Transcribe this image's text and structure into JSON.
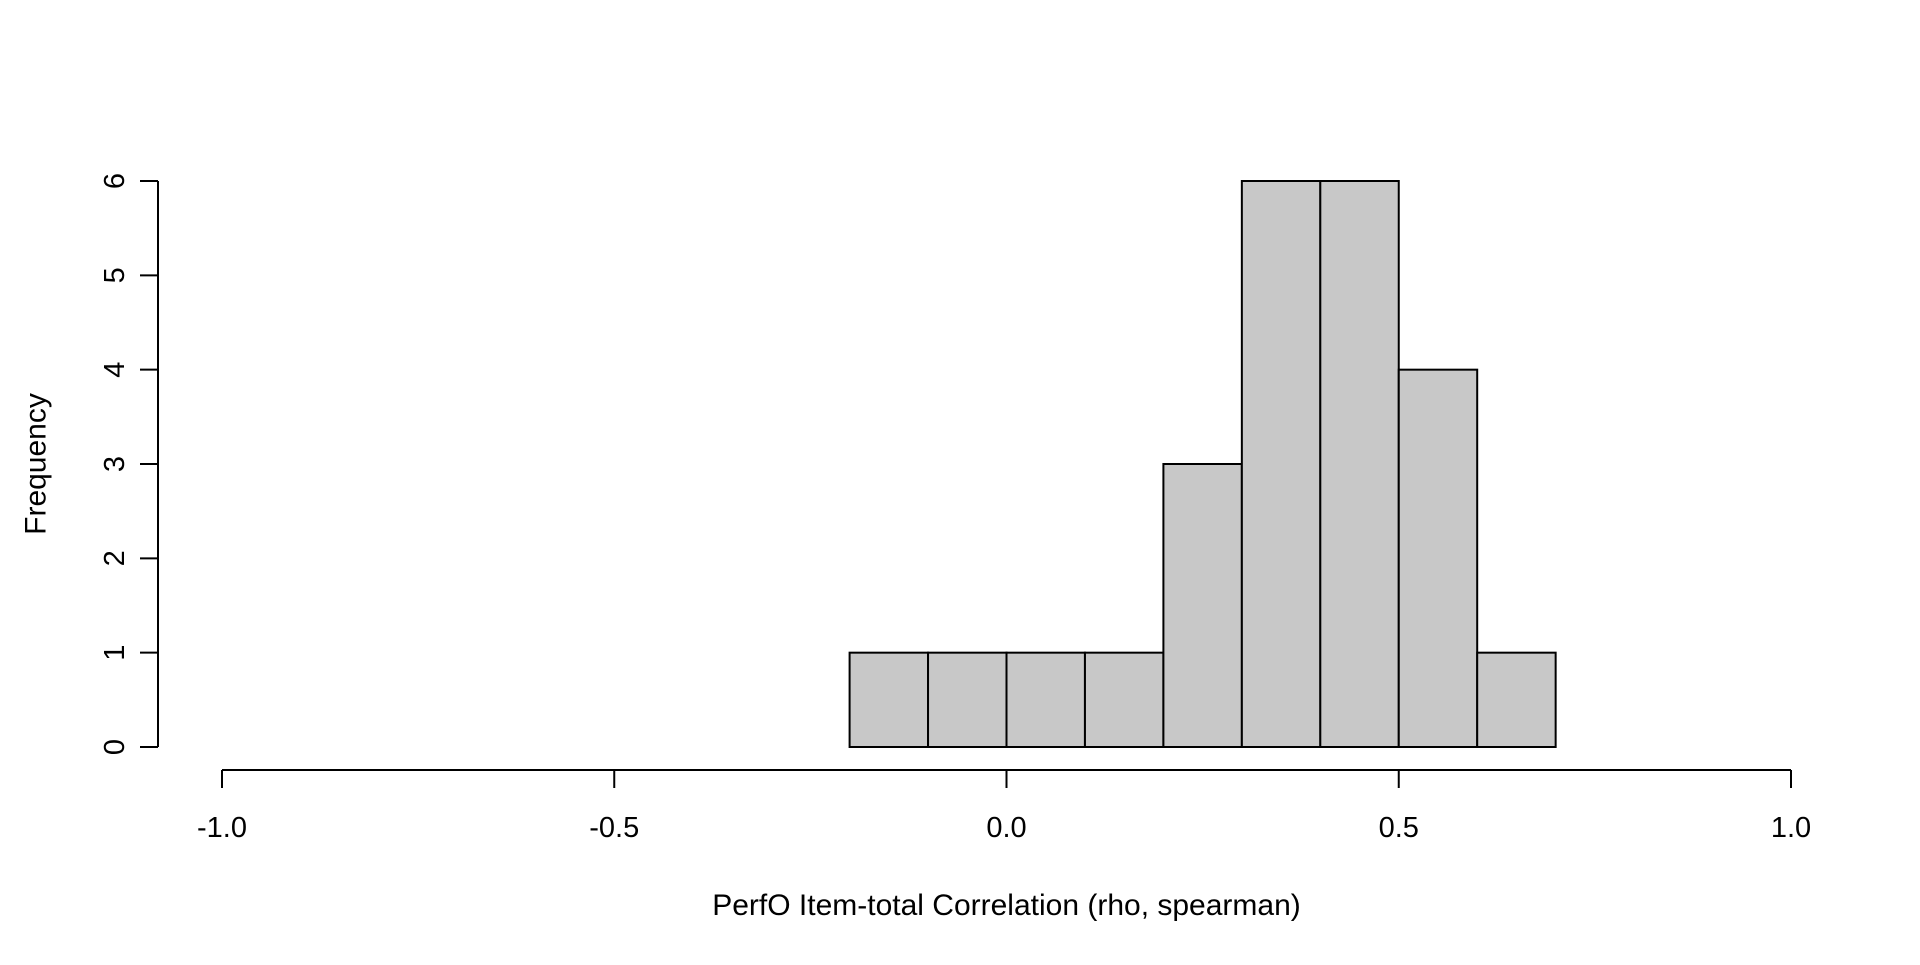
{
  "chart_data": {
    "type": "bar",
    "subtype": "histogram",
    "title": "",
    "xlabel": "PerfO Item-total Correlation (rho, spearman)",
    "ylabel": "Frequency",
    "bins": [
      {
        "start": -0.2,
        "end": -0.1,
        "count": 1
      },
      {
        "start": -0.1,
        "end": 0.0,
        "count": 1
      },
      {
        "start": 0.0,
        "end": 0.1,
        "count": 1
      },
      {
        "start": 0.1,
        "end": 0.2,
        "count": 1
      },
      {
        "start": 0.2,
        "end": 0.3,
        "count": 3
      },
      {
        "start": 0.3,
        "end": 0.4,
        "count": 6
      },
      {
        "start": 0.4,
        "end": 0.5,
        "count": 6
      },
      {
        "start": 0.5,
        "end": 0.6,
        "count": 4
      },
      {
        "start": 0.6,
        "end": 0.7,
        "count": 1
      }
    ],
    "xlim": [
      -1.0,
      1.0
    ],
    "ylim": [
      0,
      6
    ],
    "x_ticks": [
      -1.0,
      -0.5,
      0.0,
      0.5,
      1.0
    ],
    "x_tick_labels": [
      "-1.0",
      "-0.5",
      "0.0",
      "0.5",
      "1.0"
    ],
    "y_ticks": [
      0,
      1,
      2,
      3,
      4,
      5,
      6
    ],
    "y_tick_labels": [
      "0",
      "1",
      "2",
      "3",
      "4",
      "5",
      "6"
    ],
    "grid": false,
    "legend": "none",
    "colors": {
      "bar_fill": "#c8c8c8",
      "bar_stroke": "#000000",
      "axis": "#000000"
    }
  }
}
